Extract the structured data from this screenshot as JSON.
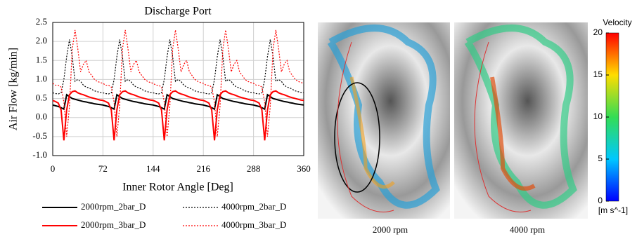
{
  "chart_data": {
    "type": "line",
    "title": "Discharge Port",
    "xlabel": "Inner Rotor Angle [Deg]",
    "ylabel": "Air Flow [kg/min]",
    "xlim": [
      0,
      360
    ],
    "xticks": [
      0,
      72,
      144,
      216,
      288,
      360
    ],
    "ylim": [
      -1,
      2.5
    ],
    "yticks": [
      {
        "value": -1,
        "label": "-1.0"
      },
      -0.5,
      {
        "value": 0,
        "label": "0.0"
      },
      0.5,
      {
        "value": 1,
        "label": "1.0"
      },
      1.5,
      {
        "value": 2,
        "label": "2.0"
      },
      2.5
    ],
    "grid": true,
    "x": [
      0,
      4,
      8,
      12,
      16,
      20,
      24,
      28,
      32,
      36,
      40,
      44,
      48,
      52,
      56,
      60,
      64,
      68,
      72,
      76,
      80,
      84,
      88,
      92,
      96,
      100,
      104,
      108,
      112,
      116,
      120,
      124,
      128,
      132,
      136,
      140,
      144,
      148,
      152,
      156,
      160,
      164,
      168,
      172,
      176,
      180,
      184,
      188,
      192,
      196,
      200,
      204,
      208,
      212,
      216,
      220,
      224,
      228,
      232,
      236,
      240,
      244,
      248,
      252,
      256,
      260,
      264,
      268,
      272,
      276,
      280,
      284,
      288,
      292,
      296,
      300,
      304,
      308,
      312,
      316,
      320,
      324,
      328,
      332,
      336,
      340,
      344,
      348,
      352,
      356,
      360
    ],
    "series": [
      {
        "name": "2000rpm_2bar_D",
        "color": "#000000",
        "style": "solid",
        "values": [
          0.33,
          0.31,
          0.29,
          0.26,
          0.22,
          0.6,
          0.55,
          0.5,
          0.48,
          0.46,
          0.44,
          0.42,
          0.41,
          0.39,
          0.38,
          0.36,
          0.35,
          0.34,
          0.33,
          0.31,
          0.29,
          0.26,
          0.22,
          0.6,
          0.55,
          0.5,
          0.48,
          0.46,
          0.44,
          0.42,
          0.41,
          0.39,
          0.38,
          0.36,
          0.35,
          0.34,
          0.33,
          0.31,
          0.29,
          0.26,
          0.22,
          0.6,
          0.55,
          0.5,
          0.48,
          0.46,
          0.44,
          0.42,
          0.41,
          0.39,
          0.38,
          0.36,
          0.35,
          0.34,
          0.33,
          0.31,
          0.29,
          0.26,
          0.22,
          0.6,
          0.55,
          0.5,
          0.48,
          0.46,
          0.44,
          0.42,
          0.41,
          0.39,
          0.38,
          0.36,
          0.35,
          0.34,
          0.33,
          0.31,
          0.29,
          0.26,
          0.22,
          0.6,
          0.55,
          0.5,
          0.48,
          0.46,
          0.44,
          0.42,
          0.41,
          0.39,
          0.38,
          0.36,
          0.35,
          0.34,
          0.33
        ]
      },
      {
        "name": "4000rpm_2bar_D",
        "color": "#000000",
        "style": "dotted",
        "values": [
          0.65,
          0.63,
          0.62,
          0.65,
          1.0,
          1.6,
          2.05,
          1.6,
          0.95,
          1.0,
          0.95,
          0.85,
          0.8,
          0.78,
          0.74,
          0.7,
          0.68,
          0.66,
          0.65,
          0.63,
          0.62,
          0.65,
          1.0,
          1.6,
          2.05,
          1.6,
          0.95,
          1.0,
          0.95,
          0.85,
          0.8,
          0.78,
          0.74,
          0.7,
          0.68,
          0.66,
          0.65,
          0.63,
          0.62,
          0.65,
          1.0,
          1.6,
          2.05,
          1.6,
          0.95,
          1.0,
          0.95,
          0.85,
          0.8,
          0.78,
          0.74,
          0.7,
          0.68,
          0.66,
          0.65,
          0.63,
          0.62,
          0.65,
          1.0,
          1.6,
          2.05,
          1.6,
          0.95,
          1.0,
          0.95,
          0.85,
          0.8,
          0.78,
          0.74,
          0.7,
          0.68,
          0.66,
          0.65,
          0.63,
          0.62,
          0.65,
          1.0,
          1.6,
          2.05,
          1.6,
          0.95,
          1.0,
          0.95,
          0.85,
          0.8,
          0.78,
          0.74,
          0.7,
          0.68,
          0.66,
          0.65
        ]
      },
      {
        "name": "2000rpm_3bar_D",
        "color": "#ff0000",
        "style": "solid",
        "values": [
          0.45,
          0.42,
          0.38,
          0.2,
          -0.6,
          0.2,
          0.6,
          0.68,
          0.7,
          0.65,
          0.62,
          0.6,
          0.57,
          0.54,
          0.52,
          0.5,
          0.48,
          0.46,
          0.45,
          0.42,
          0.38,
          0.2,
          -0.6,
          0.2,
          0.6,
          0.68,
          0.7,
          0.65,
          0.62,
          0.6,
          0.57,
          0.54,
          0.52,
          0.5,
          0.48,
          0.46,
          0.45,
          0.42,
          0.38,
          0.2,
          -0.6,
          0.2,
          0.6,
          0.68,
          0.7,
          0.65,
          0.62,
          0.6,
          0.57,
          0.54,
          0.52,
          0.5,
          0.48,
          0.46,
          0.45,
          0.42,
          0.38,
          0.2,
          -0.6,
          0.2,
          0.6,
          0.68,
          0.7,
          0.65,
          0.62,
          0.6,
          0.57,
          0.54,
          0.52,
          0.5,
          0.48,
          0.46,
          0.45,
          0.42,
          0.38,
          0.2,
          -0.6,
          0.2,
          0.6,
          0.68,
          0.7,
          0.65,
          0.62,
          0.6,
          0.57,
          0.54,
          0.52,
          0.5,
          0.48,
          0.46,
          0.45
        ]
      },
      {
        "name": "4000rpm_3bar_D",
        "color": "#ff0000",
        "style": "dotted",
        "values": [
          0.9,
          0.85,
          0.85,
          0.8,
          0.4,
          -0.5,
          0.3,
          1.8,
          2.3,
          1.8,
          1.2,
          1.4,
          1.5,
          1.2,
          1.1,
          1.0,
          0.95,
          0.92,
          0.9,
          0.85,
          0.85,
          0.8,
          0.4,
          -0.5,
          0.3,
          1.8,
          2.3,
          1.8,
          1.2,
          1.4,
          1.5,
          1.2,
          1.1,
          1.0,
          0.95,
          0.92,
          0.9,
          0.85,
          0.85,
          0.8,
          0.4,
          -0.5,
          0.3,
          1.8,
          2.3,
          1.8,
          1.2,
          1.4,
          1.5,
          1.2,
          1.1,
          1.0,
          0.95,
          0.92,
          0.9,
          0.85,
          0.85,
          0.8,
          0.4,
          -0.5,
          0.3,
          1.8,
          2.3,
          1.8,
          1.2,
          1.4,
          1.5,
          1.2,
          1.1,
          1.0,
          0.95,
          0.92,
          0.9,
          0.85,
          0.85,
          0.8,
          0.4,
          -0.5,
          0.3,
          1.8,
          2.3,
          1.8,
          1.2,
          1.4,
          1.5,
          1.2,
          1.1,
          1.0,
          0.95,
          0.92,
          0.9
        ]
      }
    ]
  },
  "panels": [
    {
      "label": "2000 rpm"
    },
    {
      "label": "4000 rpm"
    }
  ],
  "colorbar": {
    "title": "Velocity",
    "unit": "[m s^-1]",
    "lim": [
      0,
      20
    ],
    "ticks": [
      0,
      5,
      10,
      15,
      20
    ]
  }
}
